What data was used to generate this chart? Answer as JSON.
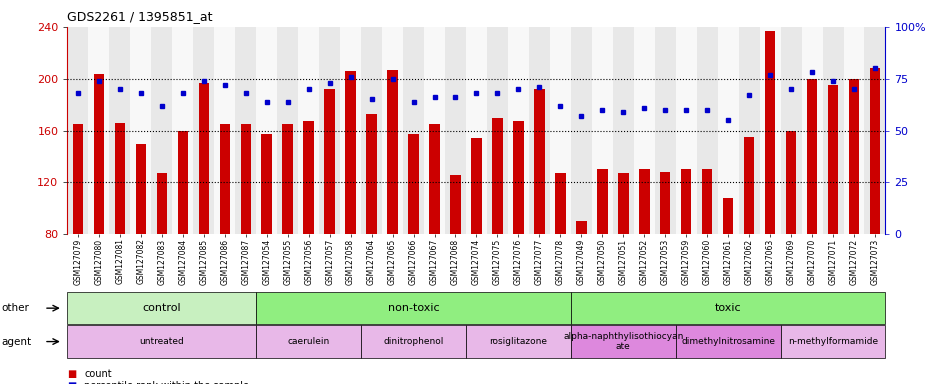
{
  "title": "GDS2261 / 1395851_at",
  "samples": [
    "GSM127079",
    "GSM127080",
    "GSM127081",
    "GSM127082",
    "GSM127083",
    "GSM127084",
    "GSM127085",
    "GSM127086",
    "GSM127087",
    "GSM127054",
    "GSM127055",
    "GSM127056",
    "GSM127057",
    "GSM127058",
    "GSM127064",
    "GSM127065",
    "GSM127066",
    "GSM127067",
    "GSM127068",
    "GSM127074",
    "GSM127075",
    "GSM127076",
    "GSM127077",
    "GSM127078",
    "GSM127049",
    "GSM127050",
    "GSM127051",
    "GSM127052",
    "GSM127053",
    "GSM127059",
    "GSM127060",
    "GSM127061",
    "GSM127062",
    "GSM127063",
    "GSM127069",
    "GSM127070",
    "GSM127071",
    "GSM127072",
    "GSM127073"
  ],
  "counts": [
    165,
    204,
    166,
    150,
    127,
    160,
    197,
    165,
    165,
    157,
    165,
    167,
    192,
    206,
    173,
    207,
    157,
    165,
    126,
    154,
    170,
    167,
    192,
    127,
    90,
    130,
    127,
    130,
    128,
    130,
    130,
    108,
    155,
    237,
    160,
    200,
    195,
    200,
    208
  ],
  "percentiles": [
    68,
    74,
    70,
    68,
    62,
    68,
    74,
    72,
    68,
    64,
    64,
    70,
    73,
    76,
    65,
    75,
    64,
    66,
    66,
    68,
    68,
    70,
    71,
    62,
    57,
    60,
    59,
    61,
    60,
    60,
    60,
    55,
    67,
    77,
    70,
    78,
    74,
    70,
    80
  ],
  "ylim_left": [
    80,
    240
  ],
  "ylim_right": [
    0,
    100
  ],
  "yticks_left": [
    80,
    120,
    160,
    200,
    240
  ],
  "yticks_right": [
    0,
    25,
    50,
    75,
    100
  ],
  "bar_color": "#cc0000",
  "dot_color": "#0000cc",
  "hline_y": [
    120,
    160,
    200
  ],
  "other_groups": [
    {
      "label": "control",
      "start": 0,
      "end": 9,
      "color": "#c8f0c0"
    },
    {
      "label": "non-toxic",
      "start": 9,
      "end": 24,
      "color": "#90ee80"
    },
    {
      "label": "toxic",
      "start": 24,
      "end": 39,
      "color": "#90ee80"
    }
  ],
  "agent_groups": [
    {
      "label": "untreated",
      "start": 0,
      "end": 9,
      "color": "#e8c0e8"
    },
    {
      "label": "caerulein",
      "start": 9,
      "end": 14,
      "color": "#e8c0e8"
    },
    {
      "label": "dinitrophenol",
      "start": 14,
      "end": 19,
      "color": "#e8c0e8"
    },
    {
      "label": "rosiglitazone",
      "start": 19,
      "end": 24,
      "color": "#e8c0e8"
    },
    {
      "label": "alpha-naphthylisothiocyan\nate",
      "start": 24,
      "end": 29,
      "color": "#dd88dd"
    },
    {
      "label": "dimethylnitrosamine",
      "start": 29,
      "end": 34,
      "color": "#dd88dd"
    },
    {
      "label": "n-methylformamide",
      "start": 34,
      "end": 39,
      "color": "#e8c0e8"
    }
  ],
  "background_color": "#ffffff",
  "tick_label_color_left": "#cc0000",
  "tick_label_color_right": "#0000cc",
  "xtick_bg_even": "#e8e8e8",
  "xtick_bg_odd": "#f8f8f8"
}
